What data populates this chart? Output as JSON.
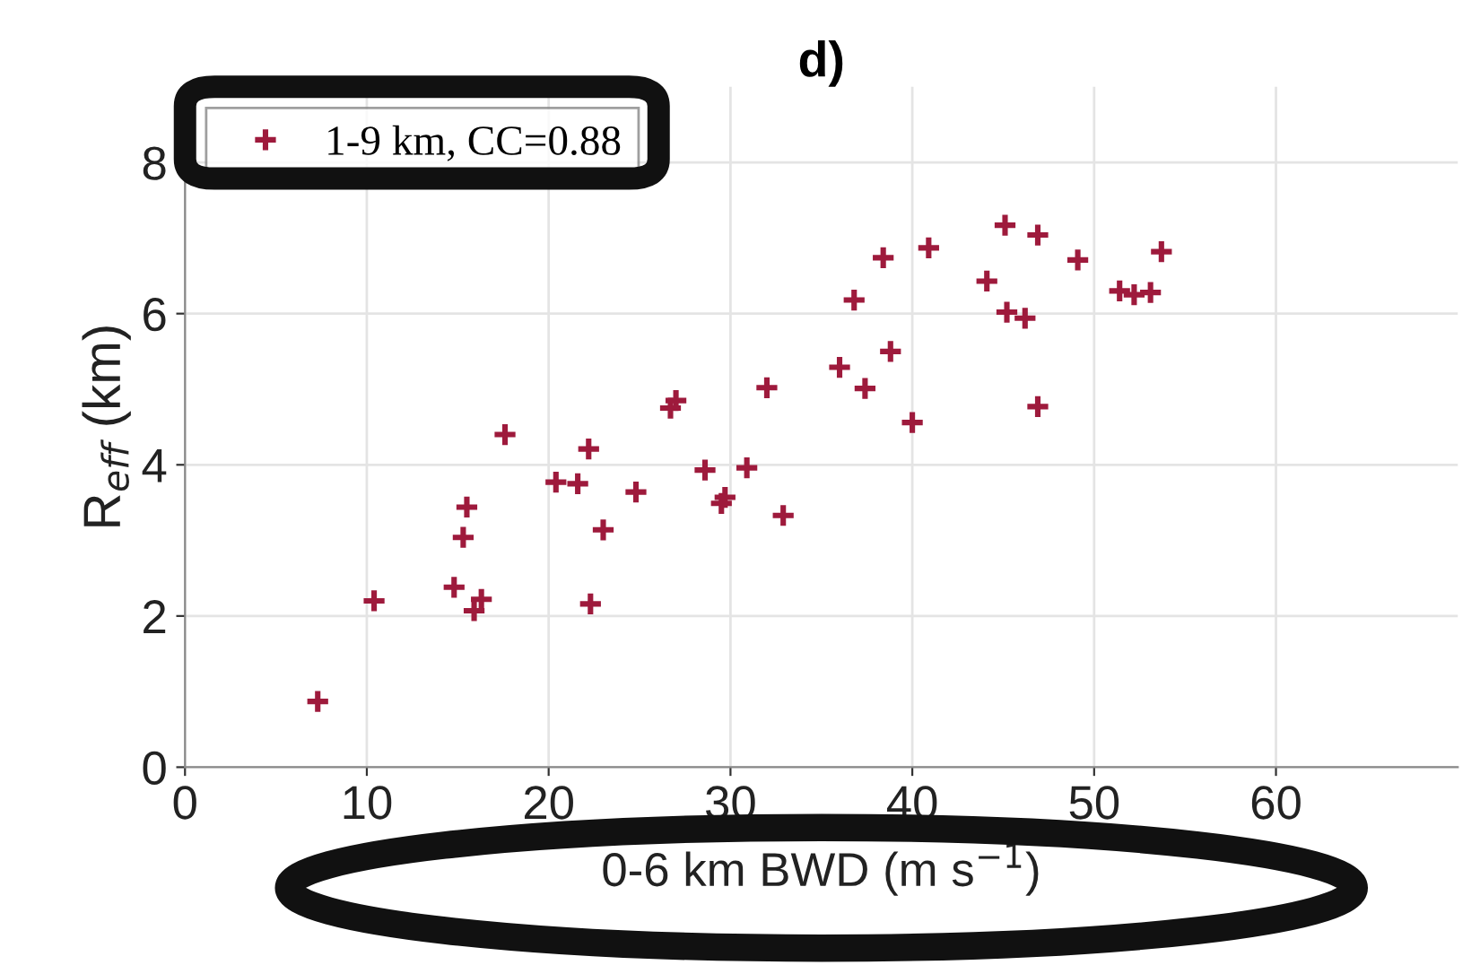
{
  "chart_data": {
    "type": "scatter",
    "title": "d)",
    "xlabel": "0-6 km BWD (m s$^{−1}$)",
    "ylabel": "R$_{eff}$ (km)",
    "xlim": [
      0,
      70
    ],
    "xticks": [
      0,
      10,
      20,
      30,
      40,
      50,
      60
    ],
    "ylim": [
      0,
      9
    ],
    "yticks": [
      0,
      2,
      4,
      6,
      8
    ],
    "grid": true,
    "legend": "top left",
    "marker": "cross",
    "series": [
      {
        "name": "1-9 km, CC=0.88",
        "color": "#9e1a3c",
        "x": [
          7.3,
          10.4,
          14.8,
          15.3,
          15.5,
          15.9,
          16.3,
          17.6,
          20.4,
          21.6,
          22.2,
          22.3,
          23.0,
          24.8,
          26.7,
          27.0,
          28.6,
          29.5,
          29.7,
          30.9,
          32.0,
          32.9,
          36.0,
          36.8,
          37.4,
          38.4,
          38.8,
          40.0,
          40.9,
          44.1,
          45.1,
          45.2,
          46.2,
          46.9,
          46.9,
          49.1,
          51.4,
          52.2,
          53.1,
          53.7
        ],
        "values": [
          0.87,
          2.2,
          2.38,
          3.04,
          3.44,
          2.07,
          2.22,
          4.4,
          3.77,
          3.75,
          4.21,
          2.16,
          3.14,
          3.64,
          4.75,
          4.85,
          3.93,
          3.49,
          3.57,
          3.96,
          5.02,
          3.33,
          5.29,
          6.18,
          5.01,
          6.74,
          5.5,
          4.56,
          6.87,
          6.43,
          7.17,
          6.02,
          5.94,
          7.04,
          4.77,
          6.71,
          6.3,
          6.25,
          6.28,
          6.82
        ]
      }
    ]
  }
}
